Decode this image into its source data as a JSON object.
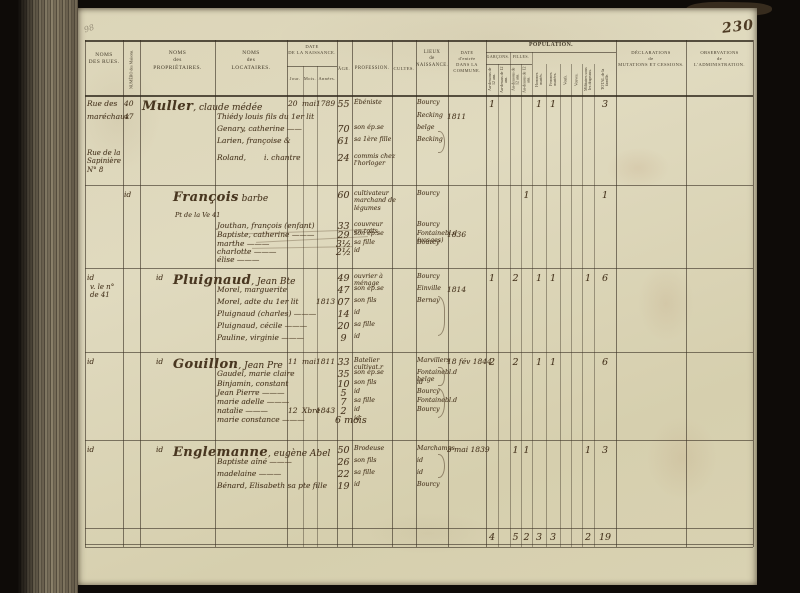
{
  "meta": {
    "page_number": "230",
    "pencil_mark": "98"
  },
  "header": {
    "noms_rues": "NOMS\nDES RUES.",
    "numero": "NUMÉRO des Maisons.",
    "proprietaires": "NOMS\ndes\nPROPRIÉTAIRES.",
    "locataires": "NOMS\ndes\nLOCATAIRES.",
    "date_naissance": "DATE\nDE LA NAISSANCE.",
    "jour": "Jour.",
    "mois": "Mois.",
    "annees": "Années.",
    "age": "ÂGE.",
    "profession": "PROFESSION.",
    "cultes": "CULTES.",
    "lieux": "LIEUX\nde\nNAISSANCE.",
    "date_entree": "DATE\nd'entrée\nDANS LA COMMUNE.",
    "population": "POPULATION.",
    "garcons": "GARÇONS.",
    "filles": "FILLES.",
    "g_sous": "Au-dessous de 12 ans.",
    "g_sur": "Au-dessus de 12 ans.",
    "f_sous": "Au-dessous de 12 ans.",
    "f_sur": "Au-dessus de 12 ans.",
    "hommes": "Hommes mariés.",
    "femmes": "Femmes mariées.",
    "veufs": "Veufs.",
    "veuves": "Veuves.",
    "militaires": "Militaires sous les drapeaux.",
    "total": "TOTAL de la famille.",
    "declarations": "DÉCLARATIONS\nde\nMUTATIONS ET CESSIONS.",
    "observations": "OBSERVATIONS\nde\nL'ADMINISTRATION."
  },
  "blocks": [
    {
      "margin_note": "Rue de la\nSapinière\nN° 8",
      "lines": [
        {
          "rue": "Rue des",
          "num": "40",
          "name": "Muller",
          "name2": ", claude médée",
          "jour": "20",
          "mois": "mai",
          "annees": "1789",
          "age": "55",
          "prof": "Ébéniste",
          "lieux": "Bourcy",
          "g1": "1",
          "hm": "1",
          "fm": "1",
          "tot": "3"
        },
        {
          "rue": "maréchaux",
          "num": "47",
          "loc": "Thiédy louis fils du 1er lit",
          "lieux": "Recking",
          "entree": "1811"
        },
        {
          "loc": "Genary, catherine ——",
          "age": "70",
          "prof": "son ép.se",
          "lieux": "belge"
        },
        {
          "loc": "Larien, françoise &",
          "age": "61",
          "prof": "sa 1ère fille",
          "lieux": "Becking"
        },
        {
          "loc": "Roland,",
          "note": "i. chantre",
          "age": "24",
          "prof": "commis chez\nl'horloger"
        }
      ]
    },
    {
      "sub_note": "Pt de la Ve 41",
      "lines": [
        {
          "num": "id",
          "name": "François",
          "name2": " barbe",
          "age": "60",
          "prof": "cultivateur\nmarchand de\nlégumes",
          "lieux": "Bourcy",
          "f2": "1",
          "tot": "1"
        },
        {
          "loc": "Jouthan, françois (enfant)",
          "age": "33",
          "prof": "couvreur\nen toits",
          "lieux": "Bourcy"
        },
        {
          "loc": "Baptiste, catherine ———",
          "age": "29",
          "prof": "son ép.se",
          "lieux": "Fontainebl.d\n(vosges)",
          "entree": "1836"
        },
        {
          "loc": "marthe ———",
          "age": "3½",
          "prof": "sa fille",
          "lieux": "Bourcy"
        },
        {
          "loc": "charlotte ———",
          "age": "2½",
          "prof": "id"
        },
        {
          "loc": "élise ———"
        }
      ]
    },
    {
      "margin_note": "v. le n°\nde 41",
      "lines": [
        {
          "rue": "id",
          "prop": "id",
          "name": "Pluignaud",
          "name2": ", Jean Bte",
          "age": "49",
          "prof": "ouvrier à\nménage",
          "lieux": "Bourcy",
          "g1": "1",
          "f1": "2",
          "hm": "1",
          "fm": "1",
          "mil": "1",
          "tot": "6"
        },
        {
          "loc": "Morel, marguerite",
          "age": "47",
          "prof": "son ép.se",
          "lieux": "Einville",
          "entree": "1814"
        },
        {
          "loc": "Morel, adte du 1er lit",
          "annees": "1813",
          "age": "07",
          "prof": "son fils",
          "lieux": "Bernay"
        },
        {
          "loc": "Pluignaud (charles) ———",
          "age": "14",
          "prof": "id"
        },
        {
          "loc": "Pluignaud, cécile ———",
          "age": "20",
          "prof": "sa fille"
        },
        {
          "loc": "Pauline, virginie ———",
          "age": "9",
          "prof": "id"
        }
      ]
    },
    {
      "lines": [
        {
          "rue": "id",
          "prop": "id",
          "name": "Gouillon",
          "name2": ", Jean Pre",
          "jour": "11",
          "mois": "mai",
          "annees": "1811",
          "age": "33",
          "prof": "Batelier\ncultivat.r",
          "lieux": "Marvillers",
          "entree": "18 fév 1844",
          "g1": "2",
          "f1": "2",
          "hm": "1",
          "fm": "1",
          "tot": "6"
        },
        {
          "loc": "Gaudel, marie claire",
          "age": "35",
          "prof": "son ép.se",
          "lieux": "Fontainebl.d\nbelge"
        },
        {
          "loc": "Binjamin, constant",
          "age": "10",
          "prof": "son fils",
          "lieux": "id"
        },
        {
          "loc": "Jean Pierre ———",
          "age": "5",
          "prof": "id",
          "lieux": "Bourcy"
        },
        {
          "loc": "marie adelle ———",
          "age": "7",
          "prof": "sa fille",
          "lieux": "Fontainebl.d"
        },
        {
          "loc": "natalie ———",
          "jour": "12",
          "mois": "Xbre",
          "annees": "1843",
          "age": "2",
          "prof": "id",
          "lieux": "Bourcy"
        },
        {
          "loc": "marie constance ———",
          "age": "6 mois",
          "prof": "id"
        }
      ]
    },
    {
      "lines": [
        {
          "rue": "id",
          "prop": "id",
          "name": "Englemanne",
          "name2": ", eugène Abel",
          "age": "50",
          "prof": "Brodeuse",
          "lieux": "Marchamps",
          "entree": "3 mai 1839",
          "f1": "1",
          "f2": "1",
          "mil": "1",
          "tot": "3"
        },
        {
          "loc": "Baptiste aîné ———",
          "age": "26",
          "prof": "son fils",
          "lieux": "id"
        },
        {
          "loc": "madelaine ———",
          "age": "22",
          "prof": "sa fille",
          "lieux": "id"
        },
        {
          "loc": "Bénard, Elisabeth sa pte fille",
          "age": "19",
          "prof": "id",
          "lieux": "Bourcy"
        }
      ]
    }
  ],
  "totals": {
    "g1": "4",
    "f1": "5",
    "f2": "2",
    "hm": "3",
    "fm": "3",
    "mil": "2",
    "tot": "19"
  }
}
